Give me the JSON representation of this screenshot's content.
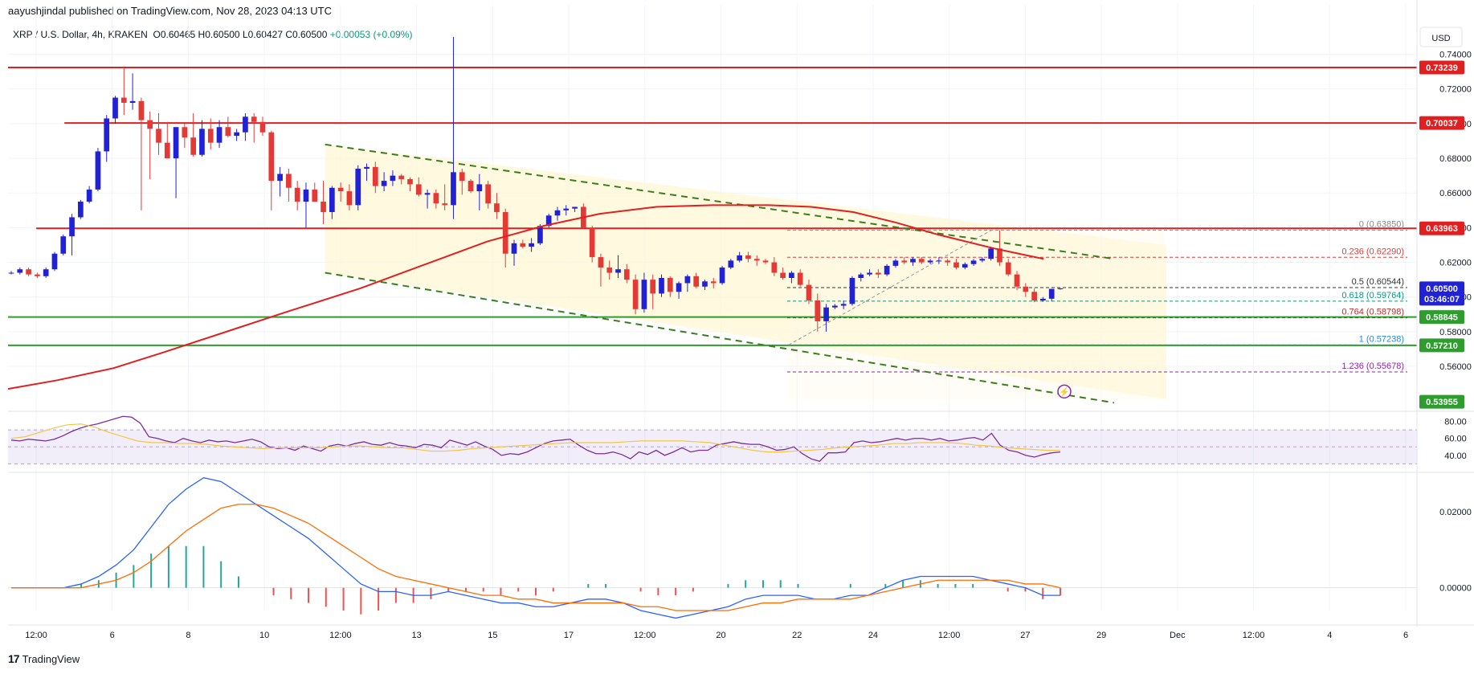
{
  "header": {
    "publisher_line": "aayushjindal published on TradingView.com, Nov 28, 2023 04:13 UTC",
    "symbol": "XRP / U.S. Dollar, 4h, KRAKEN",
    "ohlc": "O0.60465 H0.60500 L0.60427 C0.60500",
    "change": "+0.00053 (+0.09%)"
  },
  "currency_button": "USD",
  "footer": {
    "logo": "17",
    "brand": "TradingView"
  },
  "colors": {
    "up": "#2121d6",
    "down": "#e53935",
    "resistance": "#e02020",
    "support": "#2e9c2e",
    "sma": "#e02020",
    "channel": "#3a7d1f",
    "rsi": "#7b2d9e"
  },
  "chart_data": {
    "type": "candlestick",
    "title": "XRP / U.S. Dollar, 4h, KRAKEN",
    "ylim": [
      0.535,
      0.75
    ],
    "x_ticks": [
      "12:00",
      "6",
      "8",
      "10",
      "12:00",
      "13",
      "15",
      "17",
      "12:00",
      "20",
      "22",
      "24",
      "12:00",
      "27",
      "29",
      "Dec",
      "12:00",
      "4",
      "6"
    ],
    "y_ticks": [
      "0.74000",
      "0.72000",
      "0.70000",
      "0.68000",
      "0.66000",
      "0.64000",
      "0.62000",
      "0.60000",
      "0.58000",
      "0.56000"
    ],
    "price_tags": [
      {
        "label": "0.73239",
        "value": 0.73239,
        "color": "#e02020"
      },
      {
        "label": "0.70037",
        "value": 0.70037,
        "color": "#e02020"
      },
      {
        "label": "0.63963",
        "value": 0.63963,
        "color": "#e02020"
      },
      {
        "label": "0.60500",
        "value": 0.605,
        "color": "#2121d6",
        "sub": "03:46:07"
      },
      {
        "label": "0.58845",
        "value": 0.58845,
        "color": "#2e9c2e"
      },
      {
        "label": "0.57210",
        "value": 0.5721,
        "color": "#2e9c2e"
      },
      {
        "label": "0.53955",
        "value": 0.53955,
        "color": "#2e9c2e"
      }
    ],
    "horizontal_lines": [
      {
        "value": 0.73239,
        "color": "#e02020",
        "from": 0
      },
      {
        "value": 0.70037,
        "color": "#e02020",
        "from": 0.04
      },
      {
        "value": 0.63963,
        "color": "#e02020",
        "from": 0.02
      },
      {
        "value": 0.58845,
        "color": "#2e9c2e",
        "from": 0
      },
      {
        "value": 0.5721,
        "color": "#2e9c2e",
        "from": 0
      }
    ],
    "fib_levels": [
      {
        "ratio": "0",
        "value": 0.6385,
        "label": "0 (0.63850)",
        "color": "#888888"
      },
      {
        "ratio": "0.236",
        "value": 0.6229,
        "label": "0.236 (0.62290)",
        "color": "#e53935"
      },
      {
        "ratio": "0.5",
        "value": 0.60544,
        "label": "0.5 (0.60544)",
        "color": "#333333"
      },
      {
        "ratio": "0.618",
        "value": 0.59764,
        "label": "0.618 (0.59764)",
        "color": "#089981"
      },
      {
        "ratio": "0.764",
        "value": 0.58798,
        "label": "0.764 (0.58798)",
        "color": "#c62828"
      },
      {
        "ratio": "1",
        "value": 0.57238,
        "label": "1 (0.57238)",
        "color": "#1e88e5"
      },
      {
        "ratio": "1.236",
        "value": 0.55678,
        "label": "1.236 (0.55678)",
        "color": "#8e24aa"
      }
    ],
    "candles": [
      [
        0.614,
        0.615,
        0.613,
        0.614
      ],
      [
        0.614,
        0.617,
        0.613,
        0.616
      ],
      [
        0.616,
        0.617,
        0.612,
        0.613
      ],
      [
        0.613,
        0.614,
        0.611,
        0.612
      ],
      [
        0.612,
        0.617,
        0.611,
        0.616
      ],
      [
        0.616,
        0.626,
        0.615,
        0.625
      ],
      [
        0.625,
        0.636,
        0.624,
        0.635
      ],
      [
        0.635,
        0.648,
        0.624,
        0.646
      ],
      [
        0.646,
        0.656,
        0.645,
        0.655
      ],
      [
        0.655,
        0.664,
        0.654,
        0.662
      ],
      [
        0.662,
        0.686,
        0.661,
        0.684
      ],
      [
        0.684,
        0.705,
        0.678,
        0.703
      ],
      [
        0.703,
        0.716,
        0.7,
        0.715
      ],
      [
        0.715,
        0.733,
        0.705,
        0.712
      ],
      [
        0.712,
        0.729,
        0.708,
        0.713
      ],
      [
        0.713,
        0.715,
        0.65,
        0.702
      ],
      [
        0.702,
        0.707,
        0.668,
        0.697
      ],
      [
        0.697,
        0.706,
        0.682,
        0.689
      ],
      [
        0.689,
        0.701,
        0.68,
        0.68
      ],
      [
        0.68,
        0.696,
        0.657,
        0.698
      ],
      [
        0.698,
        0.7,
        0.686,
        0.692
      ],
      [
        0.692,
        0.706,
        0.681,
        0.682
      ],
      [
        0.682,
        0.702,
        0.681,
        0.697
      ],
      [
        0.697,
        0.703,
        0.685,
        0.689
      ],
      [
        0.689,
        0.702,
        0.686,
        0.698
      ],
      [
        0.698,
        0.704,
        0.692,
        0.693
      ],
      [
        0.693,
        0.697,
        0.69,
        0.695
      ],
      [
        0.695,
        0.706,
        0.69,
        0.704
      ],
      [
        0.704,
        0.706,
        0.689,
        0.701
      ],
      [
        0.701,
        0.704,
        0.693,
        0.695
      ],
      [
        0.695,
        0.696,
        0.65,
        0.667
      ],
      [
        0.667,
        0.675,
        0.658,
        0.671
      ],
      [
        0.671,
        0.674,
        0.655,
        0.663
      ],
      [
        0.663,
        0.667,
        0.65,
        0.655
      ],
      [
        0.655,
        0.666,
        0.64,
        0.662
      ],
      [
        0.662,
        0.666,
        0.655,
        0.655
      ],
      [
        0.655,
        0.667,
        0.642,
        0.649
      ],
      [
        0.649,
        0.664,
        0.645,
        0.663
      ],
      [
        0.663,
        0.666,
        0.655,
        0.661
      ],
      [
        0.661,
        0.665,
        0.65,
        0.653
      ],
      [
        0.653,
        0.676,
        0.65,
        0.674
      ],
      [
        0.674,
        0.677,
        0.667,
        0.675
      ],
      [
        0.675,
        0.678,
        0.66,
        0.664
      ],
      [
        0.664,
        0.672,
        0.661,
        0.667
      ],
      [
        0.667,
        0.673,
        0.664,
        0.67
      ],
      [
        0.67,
        0.671,
        0.665,
        0.668
      ],
      [
        0.668,
        0.669,
        0.661,
        0.665
      ],
      [
        0.665,
        0.669,
        0.658,
        0.659
      ],
      [
        0.659,
        0.662,
        0.651,
        0.66
      ],
      [
        0.66,
        0.662,
        0.651,
        0.654
      ],
      [
        0.654,
        0.665,
        0.65,
        0.653
      ],
      [
        0.653,
        0.75,
        0.645,
        0.672
      ],
      [
        0.672,
        0.674,
        0.659,
        0.667
      ],
      [
        0.667,
        0.668,
        0.66,
        0.661
      ],
      [
        0.661,
        0.671,
        0.65,
        0.665
      ],
      [
        0.665,
        0.667,
        0.651,
        0.654
      ],
      [
        0.654,
        0.66,
        0.645,
        0.649
      ],
      [
        0.649,
        0.651,
        0.617,
        0.625
      ],
      [
        0.625,
        0.633,
        0.618,
        0.631
      ],
      [
        0.631,
        0.633,
        0.628,
        0.629
      ],
      [
        0.629,
        0.634,
        0.626,
        0.631
      ],
      [
        0.631,
        0.642,
        0.63,
        0.641
      ],
      [
        0.641,
        0.648,
        0.64,
        0.647
      ],
      [
        0.647,
        0.652,
        0.644,
        0.65
      ],
      [
        0.65,
        0.653,
        0.647,
        0.651
      ],
      [
        0.651,
        0.652,
        0.649,
        0.652
      ],
      [
        0.652,
        0.654,
        0.639,
        0.64
      ],
      [
        0.64,
        0.641,
        0.62,
        0.623
      ],
      [
        0.623,
        0.625,
        0.606,
        0.617
      ],
      [
        0.617,
        0.621,
        0.61,
        0.614
      ],
      [
        0.614,
        0.624,
        0.611,
        0.616
      ],
      [
        0.616,
        0.619,
        0.608,
        0.61
      ],
      [
        0.61,
        0.613,
        0.59,
        0.593
      ],
      [
        0.593,
        0.614,
        0.591,
        0.61
      ],
      [
        0.61,
        0.613,
        0.593,
        0.602
      ],
      [
        0.602,
        0.613,
        0.6,
        0.611
      ],
      [
        0.611,
        0.612,
        0.6,
        0.603
      ],
      [
        0.603,
        0.609,
        0.599,
        0.608
      ],
      [
        0.608,
        0.613,
        0.603,
        0.612
      ],
      [
        0.612,
        0.614,
        0.605,
        0.606
      ],
      [
        0.606,
        0.61,
        0.604,
        0.609
      ],
      [
        0.609,
        0.611,
        0.605,
        0.608
      ],
      [
        0.608,
        0.618,
        0.607,
        0.617
      ],
      [
        0.617,
        0.622,
        0.616,
        0.621
      ],
      [
        0.621,
        0.626,
        0.62,
        0.624
      ],
      [
        0.624,
        0.626,
        0.62,
        0.622
      ],
      [
        0.622,
        0.624,
        0.618,
        0.621
      ],
      [
        0.621,
        0.622,
        0.619,
        0.62
      ],
      [
        0.62,
        0.623,
        0.612,
        0.614
      ],
      [
        0.614,
        0.617,
        0.61,
        0.611
      ],
      [
        0.611,
        0.615,
        0.608,
        0.614
      ],
      [
        0.614,
        0.616,
        0.606,
        0.607
      ],
      [
        0.607,
        0.61,
        0.596,
        0.598
      ],
      [
        0.598,
        0.602,
        0.58,
        0.586
      ],
      [
        0.586,
        0.596,
        0.58,
        0.594
      ],
      [
        0.594,
        0.596,
        0.593,
        0.595
      ],
      [
        0.595,
        0.598,
        0.593,
        0.596
      ],
      [
        0.596,
        0.612,
        0.595,
        0.611
      ],
      [
        0.611,
        0.614,
        0.609,
        0.613
      ],
      [
        0.613,
        0.616,
        0.612,
        0.614
      ],
      [
        0.614,
        0.616,
        0.611,
        0.613
      ],
      [
        0.613,
        0.619,
        0.612,
        0.618
      ],
      [
        0.618,
        0.622,
        0.617,
        0.621
      ],
      [
        0.621,
        0.623,
        0.619,
        0.62
      ],
      [
        0.62,
        0.623,
        0.618,
        0.622
      ],
      [
        0.622,
        0.623,
        0.619,
        0.62
      ],
      [
        0.62,
        0.622,
        0.619,
        0.621
      ],
      [
        0.621,
        0.623,
        0.619,
        0.621
      ],
      [
        0.621,
        0.622,
        0.618,
        0.62
      ],
      [
        0.62,
        0.622,
        0.616,
        0.617
      ],
      [
        0.617,
        0.62,
        0.616,
        0.619
      ],
      [
        0.619,
        0.622,
        0.618,
        0.621
      ],
      [
        0.621,
        0.623,
        0.62,
        0.622
      ],
      [
        0.622,
        0.629,
        0.621,
        0.628
      ],
      [
        0.628,
        0.6385,
        0.618,
        0.62
      ],
      [
        0.62,
        0.622,
        0.612,
        0.613
      ],
      [
        0.613,
        0.615,
        0.604,
        0.606
      ],
      [
        0.606,
        0.608,
        0.6,
        0.603
      ],
      [
        0.603,
        0.605,
        0.597,
        0.598
      ],
      [
        0.598,
        0.6,
        0.5972,
        0.599
      ],
      [
        0.599,
        0.604,
        0.5975,
        0.6047
      ],
      [
        0.6047,
        0.605,
        0.6043,
        0.605
      ]
    ],
    "sma": [
      [
        0,
        0.547
      ],
      [
        0.035,
        0.552
      ],
      [
        0.075,
        0.559
      ],
      [
        0.11,
        0.568
      ],
      [
        0.155,
        0.58
      ],
      [
        0.2,
        0.592
      ],
      [
        0.25,
        0.605
      ],
      [
        0.3,
        0.62
      ],
      [
        0.34,
        0.632
      ],
      [
        0.38,
        0.641
      ],
      [
        0.42,
        0.648
      ],
      [
        0.46,
        0.652
      ],
      [
        0.5,
        0.653
      ],
      [
        0.54,
        0.653
      ],
      [
        0.57,
        0.652
      ],
      [
        0.6,
        0.649
      ],
      [
        0.63,
        0.643
      ],
      [
        0.66,
        0.636
      ],
      [
        0.7,
        0.628
      ],
      [
        0.735,
        0.622
      ]
    ],
    "channel_upper": [
      [
        0.225,
        0.688
      ],
      [
        0.785,
        0.622
      ]
    ],
    "channel_lower": [
      [
        0.225,
        0.614
      ],
      [
        0.785,
        0.539
      ]
    ],
    "rsi": {
      "ylim": [
        20,
        90
      ],
      "y_ticks": [
        "80.00",
        "60.00",
        "40.00"
      ],
      "band": [
        30,
        70
      ],
      "values": [
        58,
        57,
        59,
        58,
        57,
        59,
        63,
        68,
        72,
        75,
        77,
        80,
        83,
        86,
        85,
        78,
        62,
        60,
        57,
        55,
        60,
        57,
        55,
        58,
        56,
        57,
        55,
        57,
        59,
        56,
        50,
        48,
        49,
        46,
        51,
        48,
        45,
        51,
        53,
        51,
        54,
        56,
        53,
        52,
        55,
        52,
        51,
        49,
        53,
        52,
        49,
        58,
        55,
        52,
        56,
        51,
        47,
        40,
        42,
        41,
        44,
        49,
        54,
        57,
        58,
        59,
        52,
        46,
        42,
        42,
        44,
        41,
        36,
        44,
        41,
        46,
        40,
        44,
        49,
        44,
        46,
        46,
        52,
        54,
        56,
        54,
        53,
        53,
        50,
        46,
        47,
        50,
        42,
        36,
        33,
        43,
        43,
        44,
        55,
        57,
        55,
        56,
        58,
        60,
        58,
        60,
        60,
        58,
        60,
        57,
        58,
        60,
        61,
        58,
        66,
        52,
        46,
        44,
        40,
        38,
        41,
        43,
        44
      ],
      "signal": [
        60,
        62,
        67,
        72,
        76,
        77,
        73,
        67,
        62,
        57,
        55,
        55,
        54,
        54,
        53,
        51,
        50,
        49,
        48,
        49,
        49,
        49,
        49,
        50,
        51,
        51,
        50,
        49,
        49,
        47,
        45,
        45,
        46,
        48,
        49,
        50,
        51,
        52,
        53,
        54,
        55,
        55,
        55,
        55,
        56,
        57,
        57,
        57,
        57,
        56,
        55,
        52,
        49,
        46,
        44,
        44,
        45,
        46,
        47,
        49,
        50,
        51,
        52,
        54,
        54,
        55,
        55,
        55,
        54,
        52,
        51,
        49,
        48,
        47,
        46,
        46
      ]
    },
    "macd": {
      "ylim": [
        -0.006,
        0.03
      ],
      "y_ticks": [
        "0.02000",
        "0.00000"
      ],
      "macd": [
        0,
        0,
        0,
        0,
        0.001,
        0.003,
        0.006,
        0.01,
        0.016,
        0.022,
        0.026,
        0.029,
        0.028,
        0.025,
        0.022,
        0.019,
        0.016,
        0.013,
        0.009,
        0.005,
        0.001,
        -0.001,
        -0.001,
        -0.002,
        -0.002,
        -0.001,
        -0.002,
        -0.003,
        -0.004,
        -0.004,
        -0.005,
        -0.005,
        -0.004,
        -0.003,
        -0.003,
        -0.004,
        -0.006,
        -0.007,
        -0.008,
        -0.007,
        -0.006,
        -0.005,
        -0.003,
        -0.002,
        -0.002,
        -0.002,
        -0.003,
        -0.003,
        -0.002,
        -0.002,
        0,
        0.002,
        0.003,
        0.003,
        0.003,
        0.003,
        0.002,
        0.001,
        0,
        -0.002,
        -0.002
      ],
      "signal": [
        0,
        0,
        0,
        0,
        0,
        0.001,
        0.002,
        0.004,
        0.007,
        0.011,
        0.015,
        0.018,
        0.021,
        0.022,
        0.022,
        0.021,
        0.019,
        0.017,
        0.014,
        0.011,
        0.008,
        0.005,
        0.003,
        0.002,
        0.001,
        0,
        -0.001,
        -0.002,
        -0.002,
        -0.003,
        -0.003,
        -0.004,
        -0.004,
        -0.004,
        -0.004,
        -0.004,
        -0.005,
        -0.005,
        -0.006,
        -0.006,
        -0.006,
        -0.006,
        -0.005,
        -0.004,
        -0.004,
        -0.003,
        -0.003,
        -0.003,
        -0.003,
        -0.002,
        -0.001,
        0,
        0.001,
        0.002,
        0.002,
        0.002,
        0.002,
        0.002,
        0.001,
        0.001,
        0
      ]
    }
  }
}
